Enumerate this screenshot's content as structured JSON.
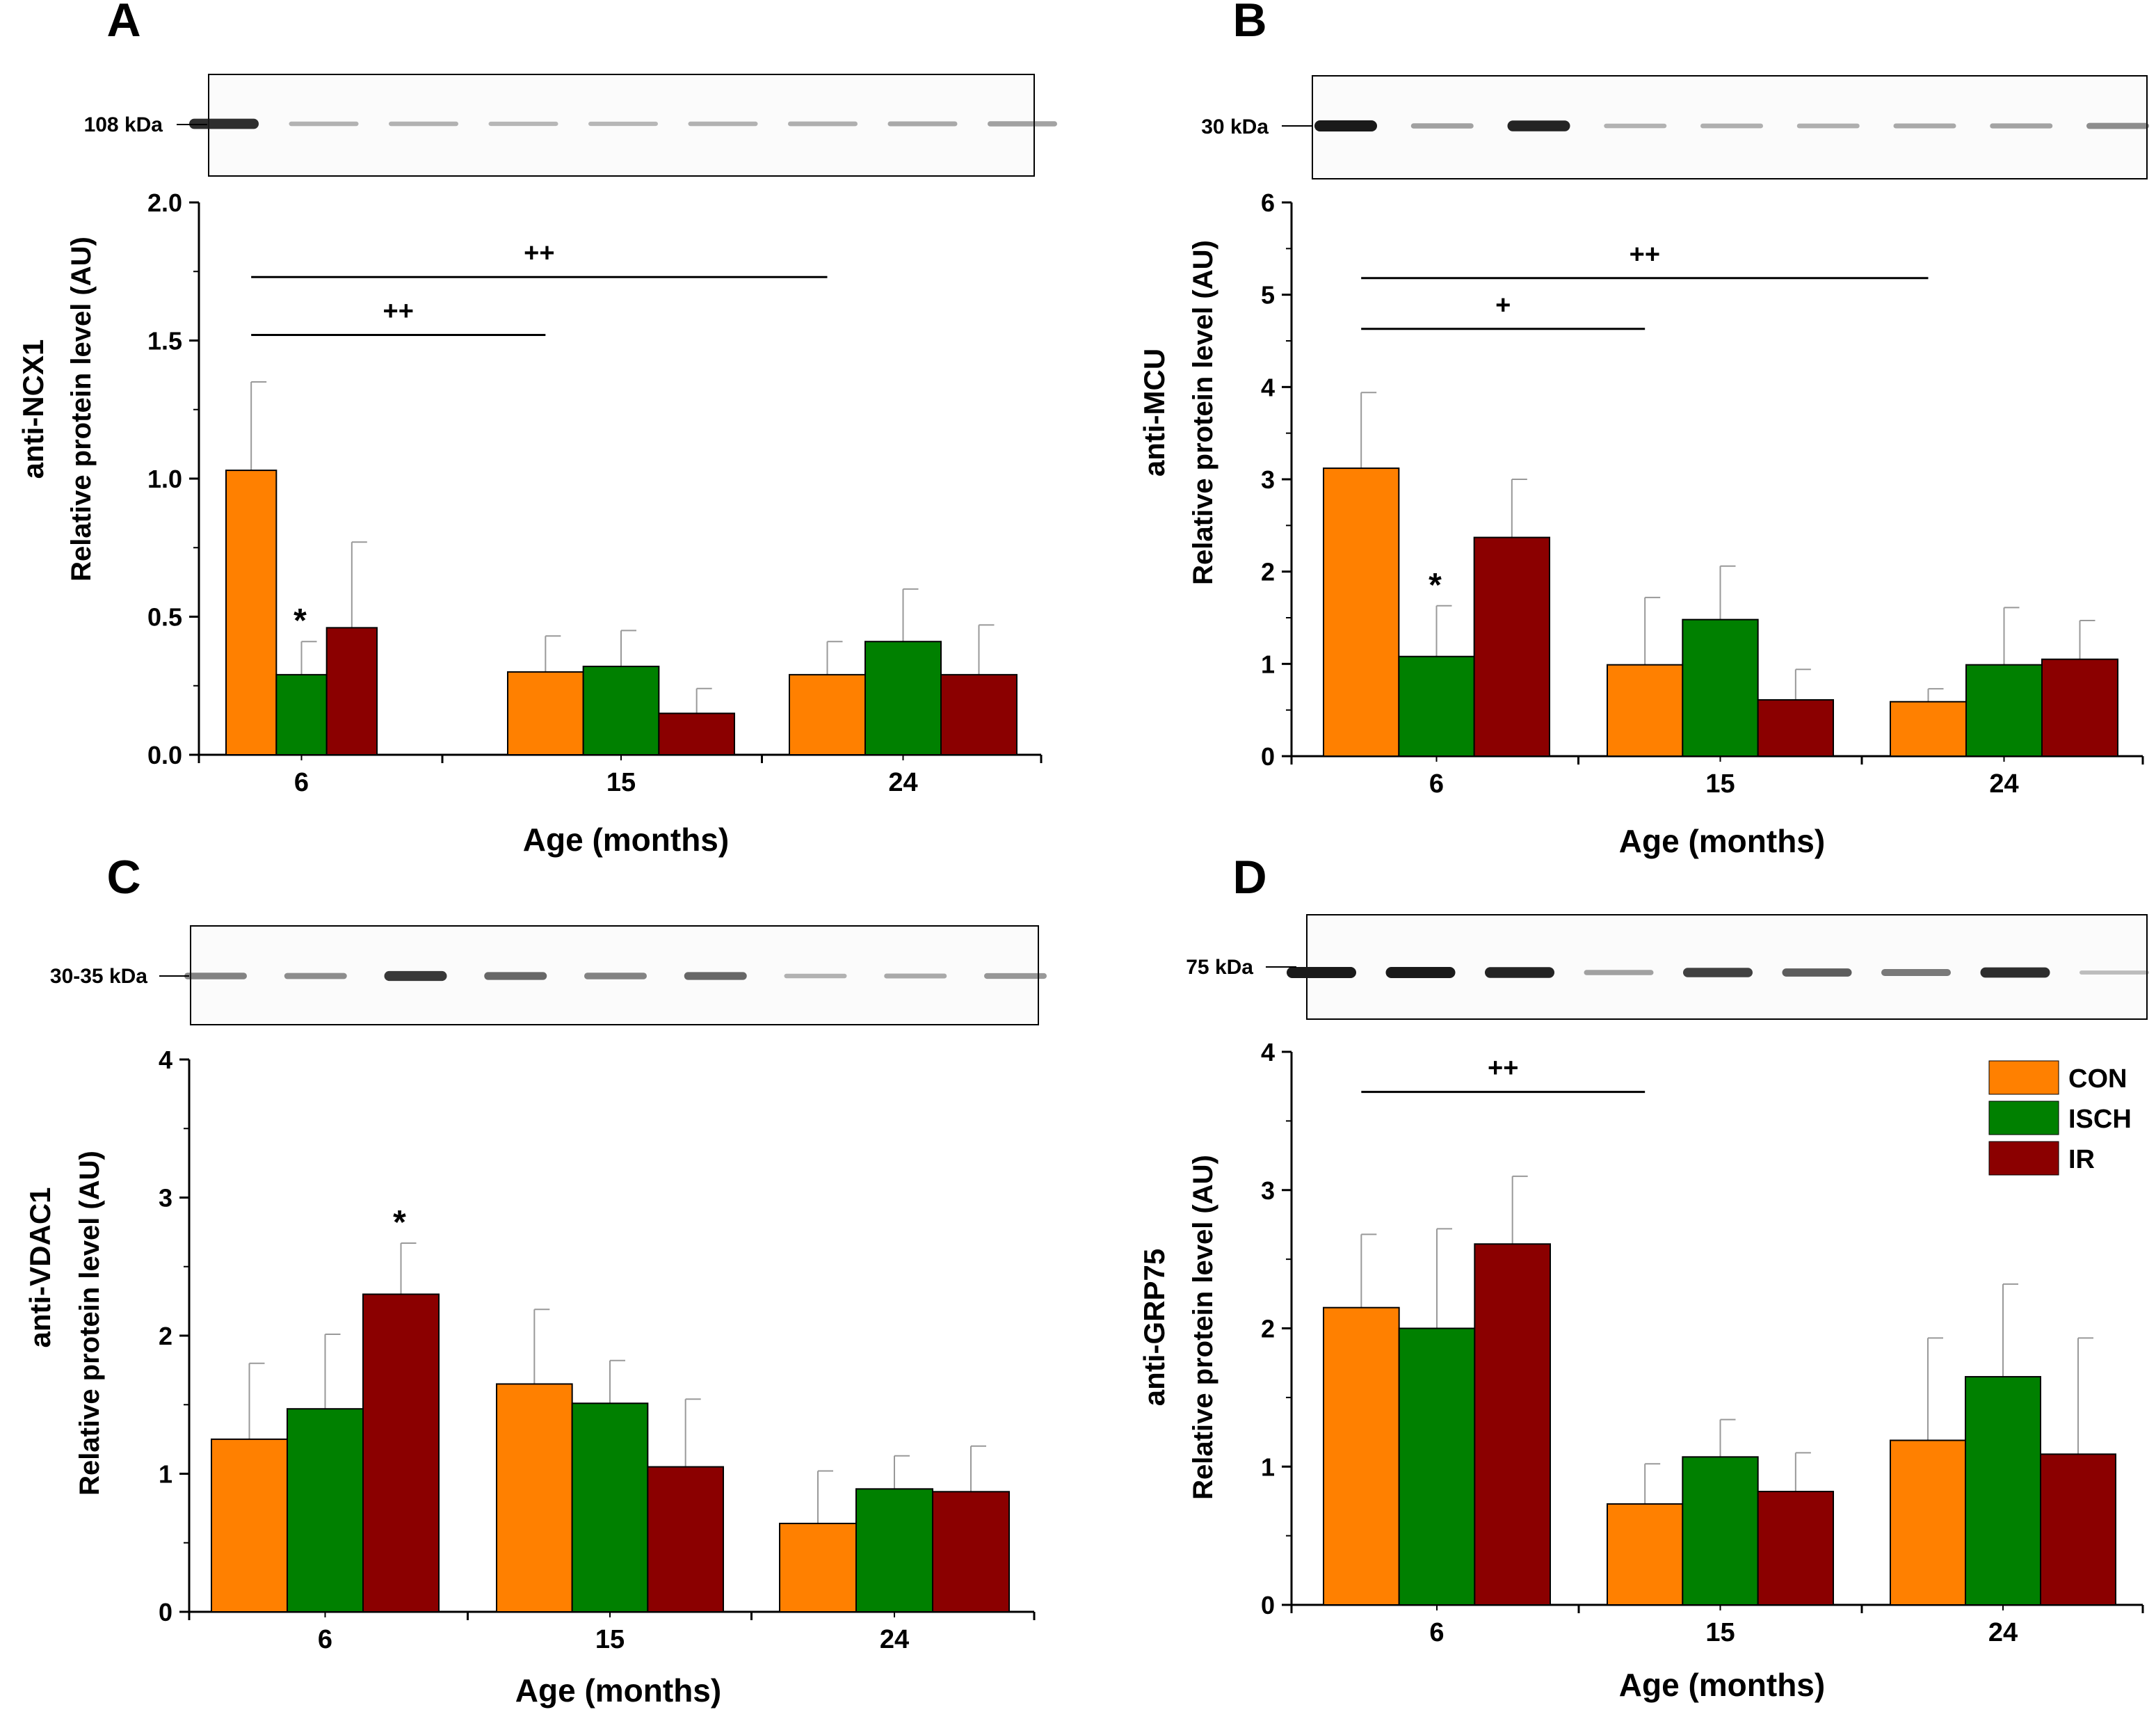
{
  "legend": [
    {
      "label": "CON",
      "color": "#FF8000"
    },
    {
      "label": "ISCH",
      "color": "#008000"
    },
    {
      "label": "IR",
      "color": "#8B0000"
    }
  ],
  "colors": {
    "con": "#FF8000",
    "isch": "#008000",
    "ir": "#8B0000",
    "axis": "#000000",
    "blot_band": "#1a1a1a"
  },
  "chart_data": [
    {
      "panel": "A",
      "type": "bar",
      "marker_label": "108 kDa",
      "ylabel_top": "anti-NCX1",
      "ylabel_bottom": "Relative protein level (AU)",
      "xlabel": "Age (months)",
      "categories": [
        "6",
        "15",
        "24"
      ],
      "ylim": [
        0,
        2.0
      ],
      "yticks": [
        "0.0",
        "0.5",
        "1.0",
        "1.5",
        "2.0"
      ],
      "ytick_values": [
        0,
        0.5,
        1.0,
        1.5,
        2.0
      ],
      "series": [
        {
          "name": "CON",
          "values": [
            1.03,
            0.3,
            0.29
          ],
          "errors": [
            0.32,
            0.13,
            0.12
          ]
        },
        {
          "name": "ISCH",
          "values": [
            0.29,
            0.32,
            0.41
          ],
          "errors": [
            0.12,
            0.13,
            0.19
          ]
        },
        {
          "name": "IR",
          "values": [
            0.46,
            0.15,
            0.29
          ],
          "errors": [
            0.31,
            0.09,
            0.18
          ]
        }
      ],
      "star_annotations": [
        {
          "group": 0,
          "series": 1,
          "text": "*"
        }
      ],
      "brackets": [
        {
          "from": 0,
          "to": 1,
          "y": 1.52,
          "label": "++"
        },
        {
          "from": 0,
          "to": 2,
          "y": 1.73,
          "label": "++"
        }
      ],
      "blot_intensities": [
        0.9,
        0.2,
        0.2,
        0.18,
        0.18,
        0.2,
        0.22,
        0.25,
        0.3
      ]
    },
    {
      "panel": "B",
      "type": "bar",
      "marker_label": "30 kDa",
      "ylabel_top": "anti-MCU",
      "ylabel_bottom": "Relative protein level (AU)",
      "xlabel": "Age (months)",
      "categories": [
        "6",
        "15",
        "24"
      ],
      "ylim": [
        0,
        6
      ],
      "yticks": [
        "0",
        "1",
        "2",
        "3",
        "4",
        "5",
        "6"
      ],
      "ytick_values": [
        0,
        1,
        2,
        3,
        4,
        5,
        6
      ],
      "series": [
        {
          "name": "CON",
          "values": [
            3.12,
            0.99,
            0.59
          ],
          "errors": [
            0.82,
            0.73,
            0.14
          ]
        },
        {
          "name": "ISCH",
          "values": [
            1.08,
            1.48,
            0.99
          ],
          "errors": [
            0.55,
            0.58,
            0.62
          ]
        },
        {
          "name": "IR",
          "values": [
            2.37,
            0.61,
            1.05
          ],
          "errors": [
            0.63,
            0.33,
            0.42
          ]
        }
      ],
      "star_annotations": [
        {
          "group": 0,
          "series": 1,
          "text": "*"
        }
      ],
      "brackets": [
        {
          "from": 0,
          "to": 1,
          "y": 4.63,
          "label": "+"
        },
        {
          "from": 0,
          "to": 2,
          "y": 5.18,
          "label": "++"
        }
      ],
      "blot_intensities": [
        1.0,
        0.3,
        0.95,
        0.2,
        0.22,
        0.22,
        0.25,
        0.28,
        0.4
      ]
    },
    {
      "panel": "C",
      "type": "bar",
      "marker_label": "30-35 kDa",
      "ylabel_top": "anti-VDAC1",
      "ylabel_bottom": "Relative protein level (AU)",
      "xlabel": "Age (months)",
      "categories": [
        "6",
        "15",
        "24"
      ],
      "ylim": [
        0,
        4
      ],
      "yticks": [
        "0",
        "1",
        "2",
        "3",
        "4"
      ],
      "ytick_values": [
        0,
        1,
        2,
        3,
        4
      ],
      "series": [
        {
          "name": "CON",
          "values": [
            1.25,
            1.65,
            0.64
          ],
          "errors": [
            0.55,
            0.54,
            0.38
          ]
        },
        {
          "name": "ISCH",
          "values": [
            1.47,
            1.51,
            0.89
          ],
          "errors": [
            0.54,
            0.31,
            0.24
          ]
        },
        {
          "name": "IR",
          "values": [
            2.3,
            1.05,
            0.87
          ],
          "errors": [
            0.37,
            0.49,
            0.33
          ]
        }
      ],
      "star_annotations": [
        {
          "group": 0,
          "series": 2,
          "text": "*"
        }
      ],
      "brackets": [],
      "blot_intensities": [
        0.45,
        0.4,
        0.85,
        0.6,
        0.45,
        0.6,
        0.2,
        0.25,
        0.35
      ]
    },
    {
      "panel": "D",
      "type": "bar",
      "marker_label": "75 kDa",
      "ylabel_top": "anti-GRP75",
      "ylabel_bottom": "Relative protein level (AU)",
      "xlabel": "Age (months)",
      "categories": [
        "6",
        "15",
        "24"
      ],
      "ylim": [
        0,
        4
      ],
      "yticks": [
        "0",
        "1",
        "2",
        "3",
        "4"
      ],
      "ytick_values": [
        0,
        1,
        2,
        3,
        4
      ],
      "series": [
        {
          "name": "CON",
          "values": [
            2.15,
            0.73,
            1.19
          ],
          "errors": [
            0.53,
            0.29,
            0.74
          ]
        },
        {
          "name": "ISCH",
          "values": [
            2.0,
            1.07,
            1.65
          ],
          "errors": [
            0.72,
            0.27,
            0.67
          ]
        },
        {
          "name": "IR",
          "values": [
            2.61,
            0.82,
            1.09
          ],
          "errors": [
            0.49,
            0.28,
            0.84
          ]
        }
      ],
      "star_annotations": [],
      "brackets": [
        {
          "from": 0,
          "to": 1,
          "y": 3.71,
          "label": "++"
        }
      ],
      "blot_intensities": [
        1.0,
        1.0,
        0.95,
        0.3,
        0.8,
        0.65,
        0.5,
        0.9,
        0.15
      ]
    }
  ]
}
